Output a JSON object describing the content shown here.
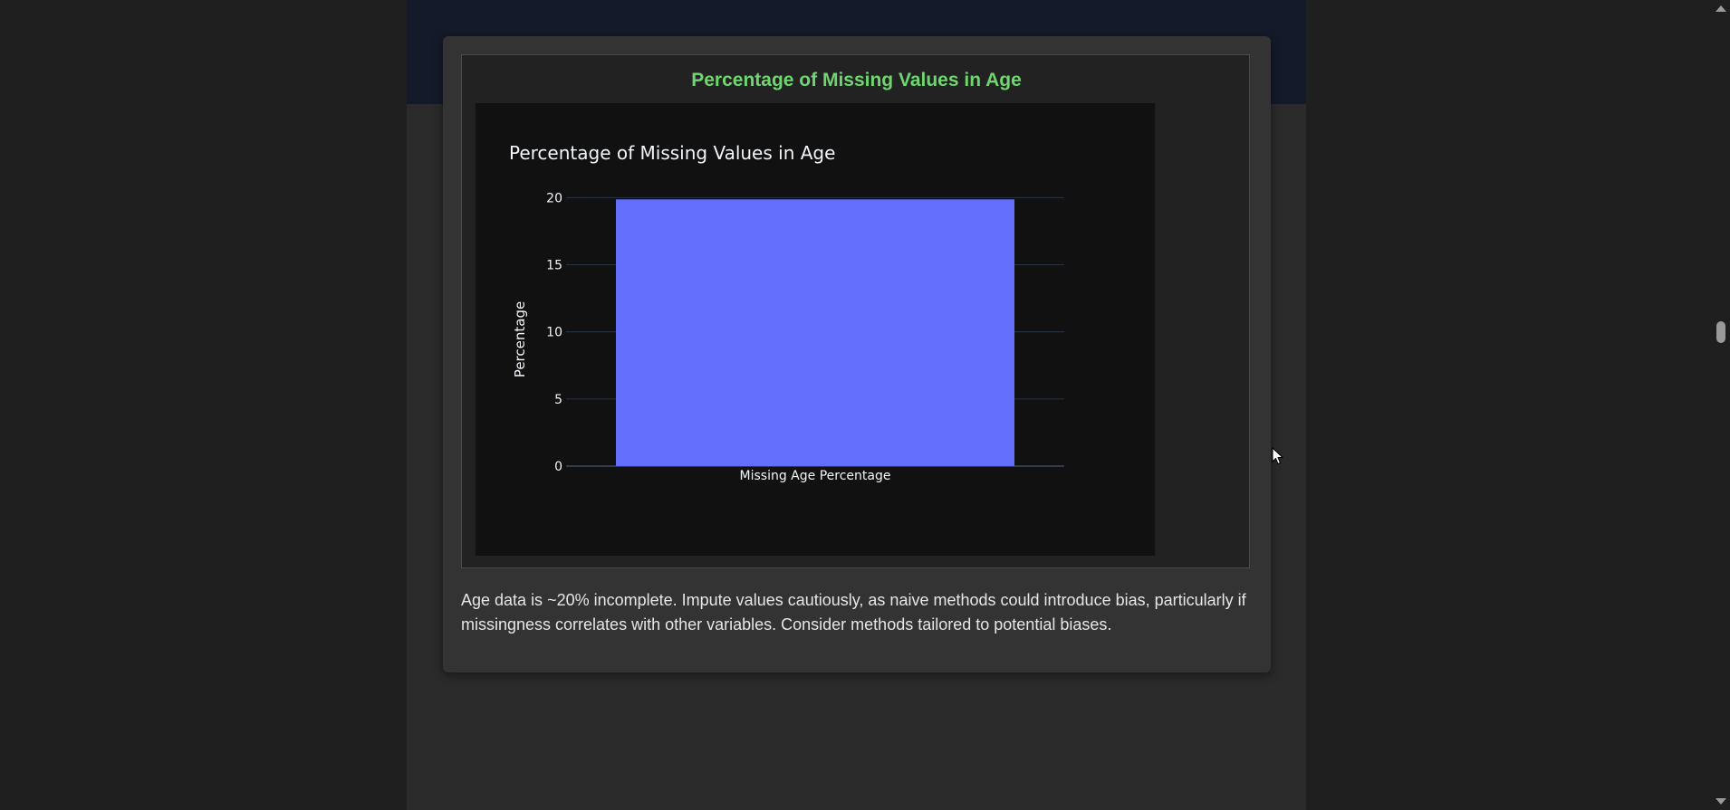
{
  "card": {
    "heading": "Percentage of Missing Values in Age",
    "description": "Age data is ~20% incomplete. Impute values cautiously, as naive methods could introduce bias, particularly if missingness correlates with other variables. Consider methods tailored to potential biases."
  },
  "chart_data": {
    "type": "bar",
    "title": "Percentage of Missing Values in Age",
    "categories": [
      "Missing Age Percentage"
    ],
    "values": [
      19.87
    ],
    "xlabel": "",
    "ylabel": "Percentage",
    "ylim": [
      0,
      20.9
    ],
    "yticks": [
      0,
      5,
      10,
      15,
      20
    ],
    "ytick_labels": [
      "0",
      "5",
      "10",
      "15",
      "20"
    ],
    "grid": true,
    "bar_color": "#636efa",
    "background": "#111111",
    "grid_color": "#283442"
  },
  "colors": {
    "heading": "#6fd66f",
    "card": "#333333"
  }
}
